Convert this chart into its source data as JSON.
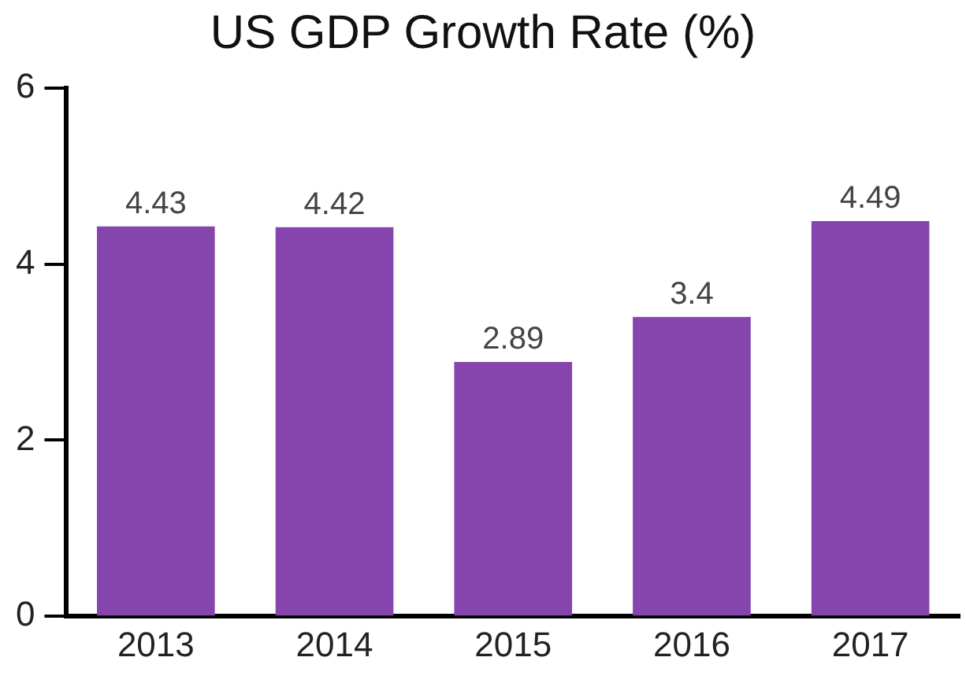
{
  "chart_data": {
    "type": "bar",
    "title": "US GDP Growth Rate (%)",
    "categories": [
      "2013",
      "2014",
      "2015",
      "2016",
      "2017"
    ],
    "values": [
      4.43,
      4.42,
      2.89,
      3.4,
      4.49
    ],
    "color": "#8545ad",
    "ylim": [
      0,
      6
    ],
    "yticks": [
      0,
      2,
      4,
      6
    ],
    "grid": false,
    "legend": false,
    "data_labels": true
  }
}
